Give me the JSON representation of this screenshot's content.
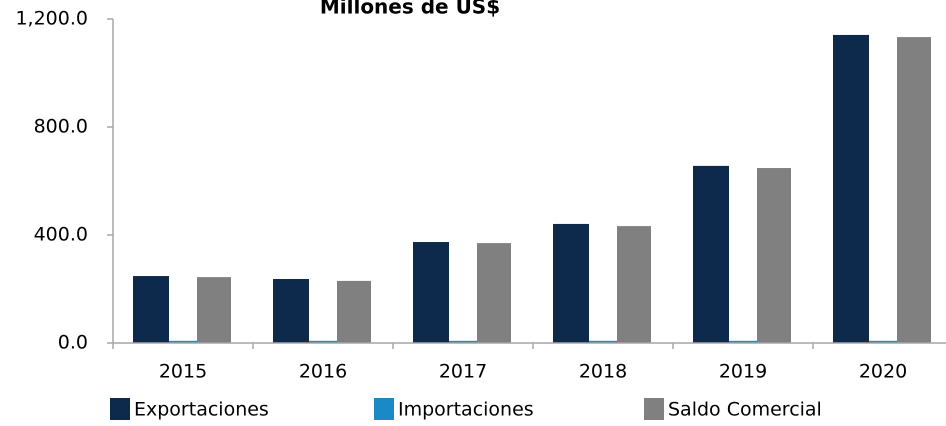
{
  "chart_data": {
    "type": "bar",
    "title": "Millones de US$",
    "categories": [
      "2015",
      "2016",
      "2017",
      "2018",
      "2019",
      "2020"
    ],
    "series": [
      {
        "name": "Exportaciones",
        "color": "#0d2a4c",
        "values": [
          248,
          237,
          374,
          441,
          656,
          1141
        ]
      },
      {
        "name": "Importaciones",
        "color": "#1a8ac6",
        "values": [
          8,
          8,
          8,
          8,
          8,
          8
        ]
      },
      {
        "name": "Saldo Comercial",
        "color": "#808080",
        "values": [
          244,
          230,
          370,
          433,
          648,
          1133
        ]
      }
    ],
    "ylim": [
      0,
      1200
    ],
    "yticks": [
      {
        "value": 0,
        "label": "0.0"
      },
      {
        "value": 400,
        "label": "400.0"
      },
      {
        "value": 800,
        "label": "800.0"
      },
      {
        "value": 1200,
        "label": "1,200.0"
      }
    ],
    "grid": false
  }
}
